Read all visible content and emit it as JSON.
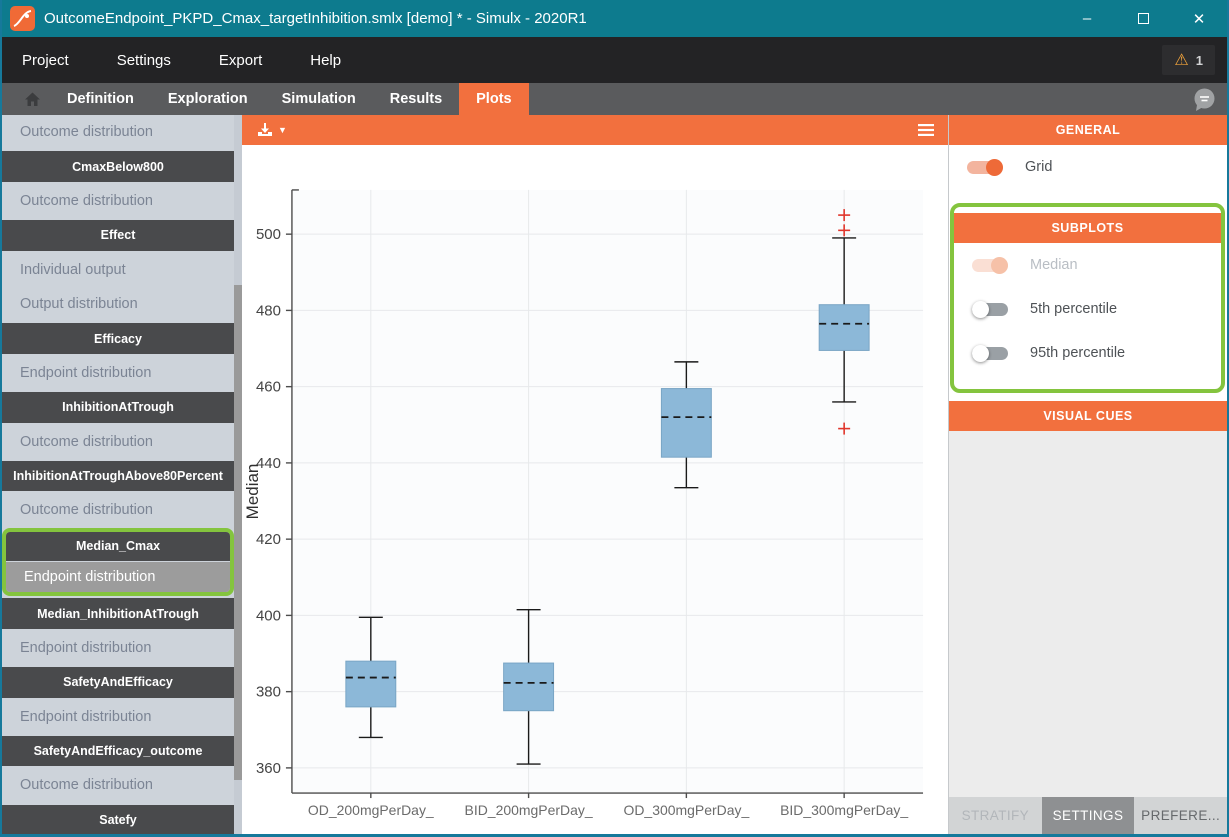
{
  "window": {
    "title": "OutcomeEndpoint_PKPD_Cmax_targetInhibition.smlx [demo] * - Simulx - 2020R1",
    "controls": {
      "minimize": "–",
      "close": "✕"
    }
  },
  "menu": {
    "items": [
      "Project",
      "Settings",
      "Export",
      "Help"
    ],
    "warning": {
      "icon": "warning-triangle",
      "glyph": "⚠",
      "count": "1"
    }
  },
  "nav_tabs": {
    "items": [
      "Definition",
      "Exploration",
      "Simulation",
      "Results",
      "Plots"
    ],
    "active": "Plots"
  },
  "sidebar": {
    "items": [
      {
        "label": "Outcome distribution",
        "type": "item"
      },
      {
        "label": "CmaxBelow800",
        "type": "section"
      },
      {
        "label": "Outcome distribution",
        "type": "item"
      },
      {
        "label": "Effect",
        "type": "section"
      },
      {
        "label": "Individual output",
        "type": "item"
      },
      {
        "label": "Output distribution",
        "type": "item"
      },
      {
        "label": "Efficacy",
        "type": "section"
      },
      {
        "label": "Endpoint distribution",
        "type": "item"
      },
      {
        "label": "InhibitionAtTrough",
        "type": "section"
      },
      {
        "label": "Outcome distribution",
        "type": "item"
      },
      {
        "label": "InhibitionAtTroughAbove80Percent",
        "type": "section"
      },
      {
        "label": "Outcome distribution",
        "type": "item"
      },
      {
        "label": "Median_Cmax",
        "type": "section",
        "highlighted": true
      },
      {
        "label": "Endpoint distribution",
        "type": "item",
        "selected": true,
        "highlighted": true
      },
      {
        "label": "Median_InhibitionAtTrough",
        "type": "section"
      },
      {
        "label": "Endpoint distribution",
        "type": "item"
      },
      {
        "label": "SafetyAndEfficacy",
        "type": "section"
      },
      {
        "label": "Endpoint distribution",
        "type": "item"
      },
      {
        "label": "SafetyAndEfficacy_outcome",
        "type": "section"
      },
      {
        "label": "Outcome distribution",
        "type": "item"
      },
      {
        "label": "Satefy",
        "type": "section"
      }
    ]
  },
  "chart_data": {
    "type": "boxplot",
    "title": "",
    "xlabel": "",
    "ylabel": "Median",
    "categories": [
      "OD_200mgPerDay_",
      "BID_200mgPerDay_",
      "OD_300mgPerDay_",
      "BID_300mgPerDay_"
    ],
    "ylim": [
      353.4,
      511.6
    ],
    "yticks": [
      360,
      380,
      400,
      420,
      440,
      460,
      480,
      500
    ],
    "grid": true,
    "series": [
      {
        "category": "OD_200mgPerDay_",
        "whisker_low": 368.0,
        "q1": 376.0,
        "median": 383.7,
        "q3": 388.0,
        "whisker_high": 399.5,
        "outliers": []
      },
      {
        "category": "BID_200mgPerDay_",
        "whisker_low": 361.0,
        "q1": 375.0,
        "median": 382.3,
        "q3": 387.5,
        "whisker_high": 401.5,
        "outliers": []
      },
      {
        "category": "OD_300mgPerDay_",
        "whisker_low": 433.5,
        "q1": 441.5,
        "median": 452.0,
        "q3": 459.5,
        "whisker_high": 466.5,
        "outliers": []
      },
      {
        "category": "BID_300mgPerDay_",
        "whisker_low": 456.0,
        "q1": 469.5,
        "median": 476.5,
        "q3": 481.5,
        "whisker_high": 499.0,
        "outliers": [
          505,
          501,
          449
        ]
      }
    ],
    "box_color": "#8cb8d8",
    "box_edge_color": "#79a5c5",
    "median_color": "#1a1a1a",
    "outlier_color": "#e0352b",
    "legend": null
  },
  "settings": {
    "general": {
      "title": "GENERAL",
      "grid": {
        "label": "Grid",
        "state": "on"
      }
    },
    "subplots": {
      "title": "SUBPLOTS",
      "highlighted": true,
      "toggles": [
        {
          "label": "Median",
          "state": "on",
          "disabled": true
        },
        {
          "label": "5th percentile",
          "state": "off",
          "disabled": false
        },
        {
          "label": "95th percentile",
          "state": "off",
          "disabled": false
        }
      ]
    },
    "visual_cues": {
      "title": "VISUAL CUES"
    },
    "bottom_tabs": [
      {
        "label": "STRATIFY",
        "state": "disabled"
      },
      {
        "label": "SETTINGS",
        "state": "active"
      },
      {
        "label": "PREFERE...",
        "state": "normal"
      }
    ]
  },
  "colors": {
    "accent": "#f2703e",
    "highlight": "#84c43e",
    "titlebar": "#0d7b8e"
  }
}
